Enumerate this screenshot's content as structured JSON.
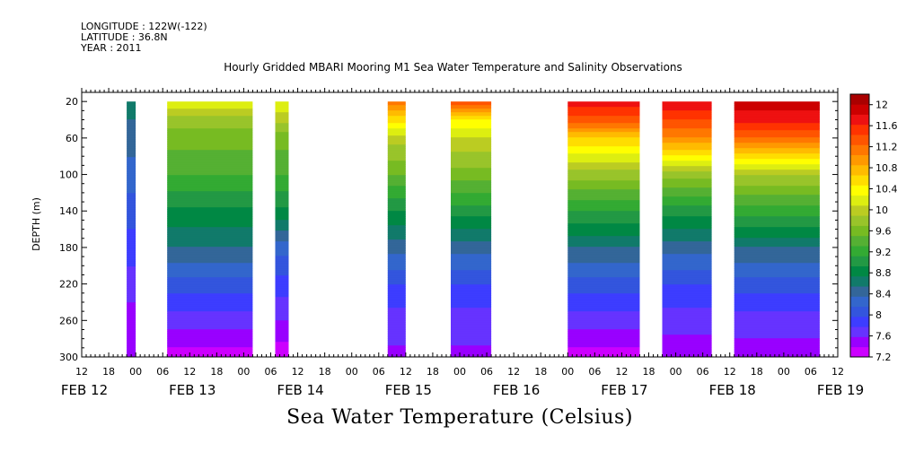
{
  "header": {
    "longitude": "LONGITUDE : 122W(-122)",
    "latitude": "LATITUDE : 36.8N",
    "year": "YEAR : 2011"
  },
  "footer_label": "Sea Water Temperature (Celsius)",
  "chart_data": {
    "type": "heatmap",
    "title": "Hourly Gridded MBARI Mooring M1 Sea Water Temperature and Salinity Observations",
    "ylabel": "DEPTH (m)",
    "xlabel": "",
    "x_start_day": 12,
    "x_start_hour": 12,
    "x_range_hours": [
      0,
      168
    ],
    "y_range_m": [
      10,
      300
    ],
    "y_ticks": [
      20,
      60,
      100,
      140,
      180,
      220,
      260,
      300
    ],
    "x_hour_ticks": [
      "12",
      "18",
      "00",
      "06",
      "12",
      "18",
      "00",
      "06",
      "12",
      "18",
      "00",
      "06",
      "12",
      "18",
      "00",
      "06",
      "12",
      "18",
      "00",
      "06",
      "12",
      "18",
      "00",
      "06",
      "12",
      "18",
      "00",
      "06",
      "12"
    ],
    "date_labels": [
      {
        "text": "FEB 12",
        "day": 12
      },
      {
        "text": "FEB 13",
        "day": 13
      },
      {
        "text": "FEB 14",
        "day": 14
      },
      {
        "text": "FEB 15",
        "day": 15
      },
      {
        "text": "FEB 16",
        "day": 16
      },
      {
        "text": "FEB 17",
        "day": 17
      },
      {
        "text": "FEB 18",
        "day": 18
      },
      {
        "text": "FEB 19",
        "day": 19
      }
    ],
    "colorbar": {
      "levels": [
        7.2,
        7.4,
        7.6,
        7.8,
        8.0,
        8.2,
        8.4,
        8.6,
        8.8,
        9.0,
        9.2,
        9.4,
        9.6,
        9.8,
        10.0,
        10.2,
        10.4,
        10.6,
        10.8,
        11.0,
        11.2,
        11.4,
        11.6,
        11.8,
        12.0,
        12.2
      ],
      "labels": [
        "7.2",
        "7.6",
        "8",
        "8.4",
        "8.8",
        "9.2",
        "9.6",
        "10",
        "10.4",
        "10.8",
        "11.2",
        "11.6",
        "12"
      ],
      "colors": [
        "#cc00ff",
        "#9900ff",
        "#6633ff",
        "#3d3dff",
        "#3355dd",
        "#3366cc",
        "#336699",
        "#117a6a",
        "#008844",
        "#229944",
        "#33aa33",
        "#55b033",
        "#77bb22",
        "#99c42a",
        "#bbcc22",
        "#ddee11",
        "#ffff00",
        "#ffdd00",
        "#ffbb00",
        "#ff9900",
        "#ff7700",
        "#ff5500",
        "#ff3300",
        "#ee1111",
        "#cc0000",
        "#aa0000"
      ]
    },
    "segments": [
      {
        "start_h": 10,
        "end_h": 12,
        "profile": [
          [
            20,
            8.7
          ],
          [
            60,
            8.5
          ],
          [
            100,
            8.3
          ],
          [
            140,
            8.1
          ],
          [
            180,
            7.9
          ],
          [
            220,
            7.7
          ],
          [
            260,
            7.5
          ],
          [
            300,
            7.45
          ]
        ]
      },
      {
        "start_h": 19,
        "end_h": 38,
        "profile": [
          [
            20,
            10.4
          ],
          [
            40,
            9.9
          ],
          [
            60,
            9.7
          ],
          [
            100,
            9.4
          ],
          [
            140,
            8.95
          ],
          [
            180,
            8.6
          ],
          [
            220,
            8.1
          ],
          [
            260,
            7.7
          ],
          [
            300,
            7.3
          ]
        ]
      },
      {
        "start_h": 43,
        "end_h": 46,
        "profile": [
          [
            20,
            10.4
          ],
          [
            60,
            9.7
          ],
          [
            100,
            9.4
          ],
          [
            140,
            8.95
          ],
          [
            180,
            8.3
          ],
          [
            220,
            7.9
          ],
          [
            260,
            7.6
          ],
          [
            300,
            7.25
          ]
        ]
      },
      {
        "start_h": 68,
        "end_h": 72,
        "profile": [
          [
            20,
            11.3
          ],
          [
            40,
            10.7
          ],
          [
            60,
            10.1
          ],
          [
            100,
            9.6
          ],
          [
            140,
            9.0
          ],
          [
            180,
            8.5
          ],
          [
            220,
            8.0
          ],
          [
            260,
            7.7
          ],
          [
            300,
            7.55
          ]
        ]
      },
      {
        "start_h": 82,
        "end_h": 91,
        "profile": [
          [
            20,
            11.6
          ],
          [
            40,
            10.6
          ],
          [
            60,
            10.2
          ],
          [
            100,
            9.7
          ],
          [
            140,
            9.1
          ],
          [
            180,
            8.5
          ],
          [
            220,
            8.0
          ],
          [
            260,
            7.7
          ],
          [
            300,
            7.55
          ]
        ]
      },
      {
        "start_h": 108,
        "end_h": 124,
        "profile": [
          [
            20,
            11.9
          ],
          [
            40,
            11.5
          ],
          [
            60,
            10.8
          ],
          [
            100,
            9.9
          ],
          [
            140,
            9.2
          ],
          [
            180,
            8.6
          ],
          [
            220,
            8.1
          ],
          [
            260,
            7.7
          ],
          [
            300,
            7.3
          ]
        ]
      },
      {
        "start_h": 129,
        "end_h": 140,
        "profile": [
          [
            20,
            12.0
          ],
          [
            40,
            11.6
          ],
          [
            60,
            11.2
          ],
          [
            100,
            9.9
          ],
          [
            140,
            9.1
          ],
          [
            180,
            8.5
          ],
          [
            220,
            8.0
          ],
          [
            260,
            7.7
          ],
          [
            300,
            7.45
          ]
        ]
      },
      {
        "start_h": 145,
        "end_h": 164,
        "profile": [
          [
            20,
            12.1
          ],
          [
            40,
            11.9
          ],
          [
            60,
            11.4
          ],
          [
            100,
            10.0
          ],
          [
            140,
            9.3
          ],
          [
            180,
            8.6
          ],
          [
            220,
            8.1
          ],
          [
            260,
            7.7
          ],
          [
            300,
            7.5
          ]
        ]
      }
    ]
  }
}
